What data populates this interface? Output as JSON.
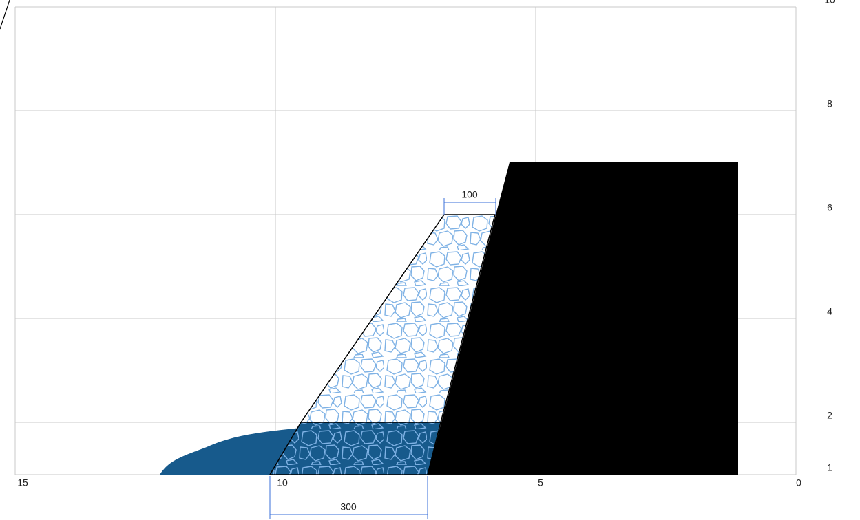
{
  "x_axis": {
    "ticks": [
      "15",
      "10",
      "5",
      "0"
    ]
  },
  "y_axis": {
    "ticks": [
      "1",
      "2",
      "4",
      "6",
      "8",
      "10"
    ]
  },
  "dimensions": {
    "top_width": "100",
    "base_width": "300"
  }
}
